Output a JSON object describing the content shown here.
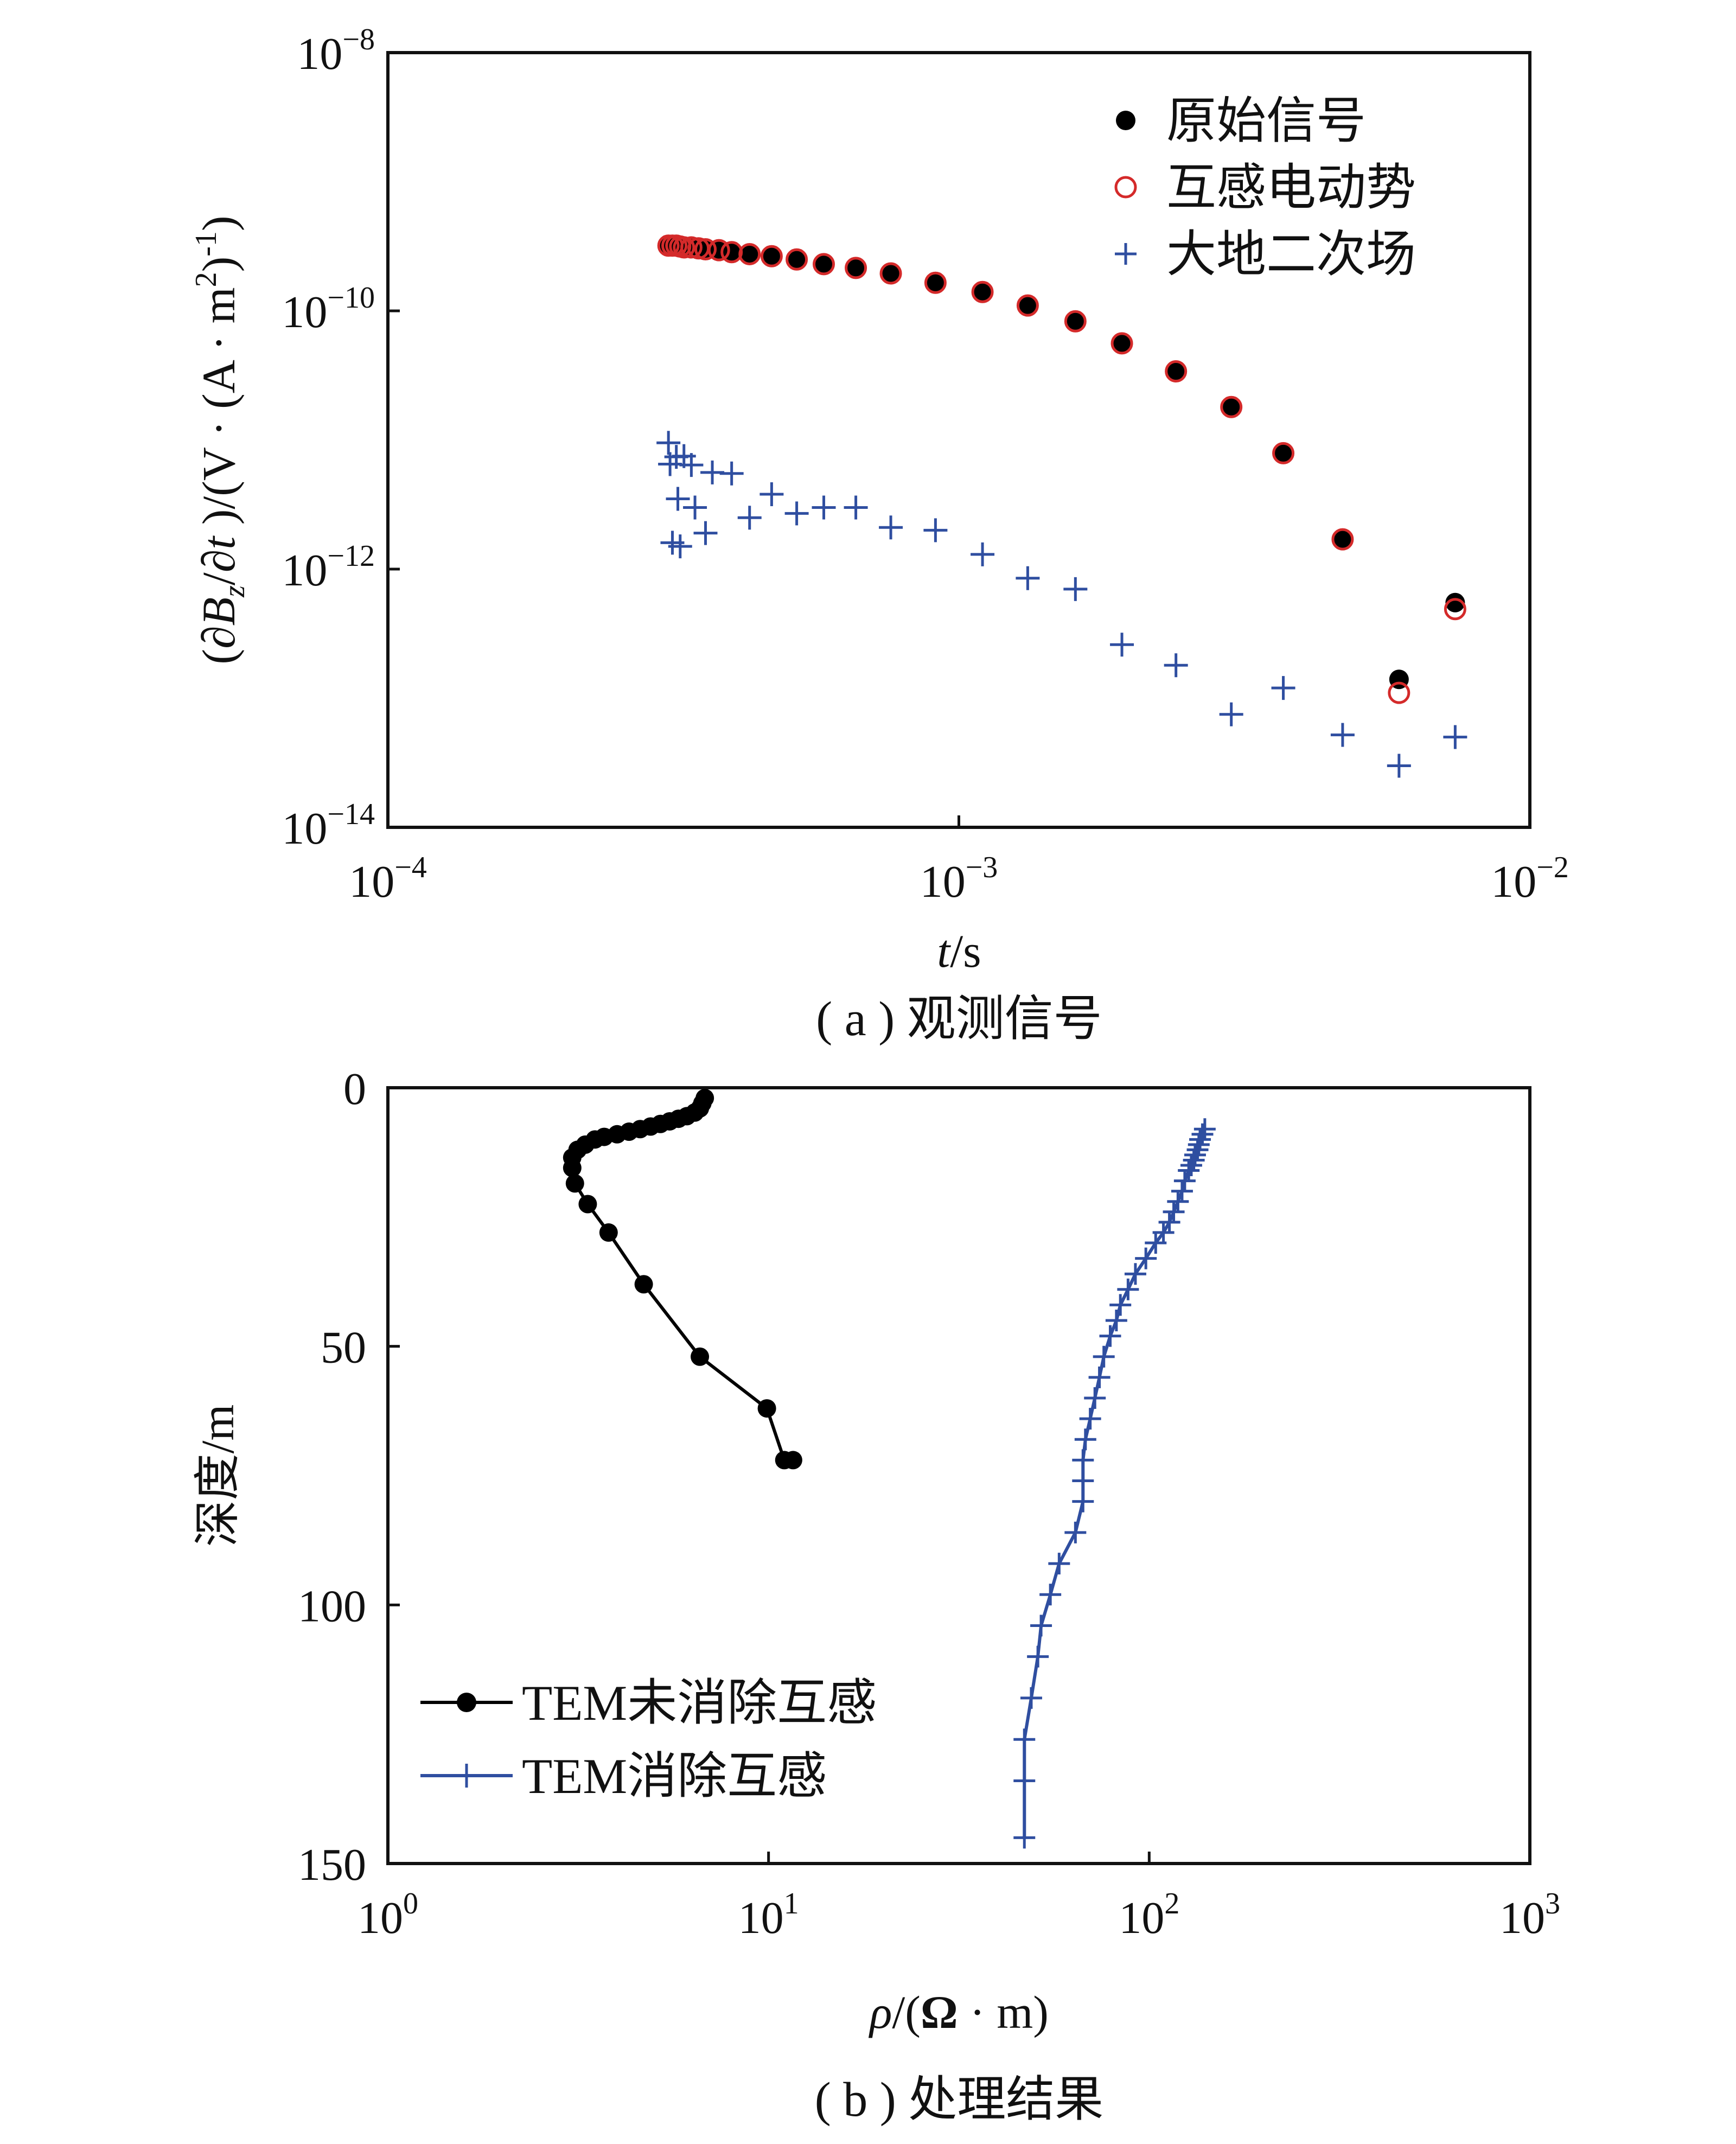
{
  "chart_data": [
    {
      "type": "scatter",
      "panel": "a",
      "caption": "( a ) 观测信号",
      "xlabel": "t/s",
      "ylabel": "(∂Bz/∂t )/(V · (A · m2)-1)",
      "xscale": "log",
      "yscale": "log",
      "xlim": [
        0.0001,
        0.01
      ],
      "ylim": [
        1e-14,
        1e-08
      ],
      "x_ticks": [
        {
          "value": 0.0001,
          "base": "10",
          "exp": "−4"
        },
        {
          "value": 0.001,
          "base": "10",
          "exp": "−3"
        },
        {
          "value": 0.01,
          "base": "10",
          "exp": "−2"
        }
      ],
      "y_ticks": [
        {
          "value": 1e-08,
          "base": "10",
          "exp": "−8"
        },
        {
          "value": 1e-10,
          "base": "10",
          "exp": "−10"
        },
        {
          "value": 1e-12,
          "base": "10",
          "exp": "−12"
        },
        {
          "value": 1e-14,
          "base": "10",
          "exp": "−14"
        }
      ],
      "legend_position": "top-right",
      "series": [
        {
          "name": "原始信号",
          "marker": "filled-circle",
          "color": "#000000",
          "x": [
            0.00031,
            0.000315,
            0.00032,
            0.000325,
            0.00033,
            0.00034,
            0.00035,
            0.00036,
            0.00038,
            0.0004,
            0.00043,
            0.00047,
            0.00052,
            0.00058,
            0.00066,
            0.00076,
            0.00091,
            0.0011,
            0.00132,
            0.0016,
            0.00193,
            0.0024,
            0.003,
            0.0037,
            0.0047,
            0.0059,
            0.0074
          ],
          "y": [
            3.2e-10,
            3.2e-10,
            3.2e-10,
            3.15e-10,
            3.1e-10,
            3.1e-10,
            3.05e-10,
            3e-10,
            2.95e-10,
            2.85e-10,
            2.75e-10,
            2.65e-10,
            2.5e-10,
            2.3e-10,
            2.15e-10,
            1.95e-10,
            1.65e-10,
            1.4e-10,
            1.1e-10,
            8.3e-11,
            5.6e-11,
            3.4e-11,
            1.8e-11,
            7.9e-12,
            1.7e-12,
            1.4e-13,
            5.5e-13
          ]
        },
        {
          "name": "互感电动势",
          "marker": "open-circle",
          "color": "#d42a2a",
          "x": [
            0.00031,
            0.000315,
            0.00032,
            0.000325,
            0.00033,
            0.00034,
            0.00035,
            0.00036,
            0.00038,
            0.0004,
            0.00043,
            0.00047,
            0.00052,
            0.00058,
            0.00066,
            0.00076,
            0.00091,
            0.0011,
            0.00132,
            0.0016,
            0.00193,
            0.0024,
            0.003,
            0.0037,
            0.0047,
            0.0059,
            0.0074
          ],
          "y": [
            3.2e-10,
            3.2e-10,
            3.2e-10,
            3.15e-10,
            3.1e-10,
            3.1e-10,
            3.05e-10,
            3e-10,
            2.95e-10,
            2.85e-10,
            2.75e-10,
            2.65e-10,
            2.5e-10,
            2.3e-10,
            2.15e-10,
            1.95e-10,
            1.65e-10,
            1.4e-10,
            1.1e-10,
            8.3e-11,
            5.6e-11,
            3.4e-11,
            1.8e-11,
            7.9e-12,
            1.7e-12,
            1.1e-13,
            4.9e-13
          ]
        },
        {
          "name": "大地二次场",
          "marker": "plus",
          "color": "#2f4ea0",
          "x": [
            0.00031,
            0.000312,
            0.000315,
            0.00032,
            0.000322,
            0.000325,
            0.00033,
            0.00034,
            0.000345,
            0.00036,
            0.00037,
            0.0004,
            0.00043,
            0.00047,
            0.00052,
            0.00058,
            0.00066,
            0.00076,
            0.00091,
            0.0011,
            0.00132,
            0.0016,
            0.00193,
            0.0024,
            0.003,
            0.0037,
            0.0047,
            0.0059,
            0.0074
          ],
          "y": [
            9.5e-12,
            6.5e-12,
            1.6e-12,
            7.4e-12,
            3.5e-12,
            1.5e-12,
            7.5e-12,
            6.4e-12,
            3e-12,
            1.9e-12,
            5.6e-12,
            5.5e-12,
            2.5e-12,
            3.8e-12,
            2.7e-12,
            3e-12,
            3e-12,
            2.1e-12,
            2e-12,
            1.3e-12,
            8.5e-13,
            7e-13,
            2.6e-13,
            1.8e-13,
            7.5e-14,
            1.2e-13,
            5.2e-14,
            3e-14,
            5e-14
          ]
        }
      ]
    },
    {
      "type": "line",
      "panel": "b",
      "caption": "( b ) 处理结果",
      "xlabel": "ρ/(Ω · m)",
      "ylabel": "深度/m",
      "xscale": "log",
      "xlim": [
        1,
        1000
      ],
      "ylim": [
        0,
        150
      ],
      "y_inverted": true,
      "x_ticks": [
        {
          "value": 1,
          "base": "10",
          "exp": "0"
        },
        {
          "value": 10,
          "base": "10",
          "exp": "1"
        },
        {
          "value": 100,
          "base": "10",
          "exp": "2"
        },
        {
          "value": 1000,
          "base": "10",
          "exp": "3"
        }
      ],
      "y_ticks": [
        0,
        50,
        100,
        150
      ],
      "legend_position": "bottom-left",
      "series": [
        {
          "name": "TEM未消除互感",
          "marker": "filled-circle",
          "color": "#000000",
          "x": [
            6.8,
            6.7,
            6.6,
            6.4,
            6.1,
            5.8,
            5.5,
            5.2,
            4.9,
            4.6,
            4.3,
            4.0,
            3.7,
            3.5,
            3.3,
            3.15,
            3.05,
            3.05,
            3.1,
            3.35,
            3.8,
            4.7,
            6.6,
            9.9,
            11.0,
            11.6
          ],
          "y": [
            2,
            3,
            4,
            4.8,
            5.5,
            6.0,
            6.5,
            7.0,
            7.5,
            8.0,
            8.5,
            9.0,
            9.5,
            10.0,
            11.0,
            12.0,
            13.5,
            15.5,
            18.5,
            22.5,
            28.0,
            38.0,
            52.0,
            62.0,
            72.0,
            72.0
          ],
          "y_note": "last two points plotted distinctly"
        },
        {
          "name": "TEM消除互感",
          "marker": "plus",
          "color": "#2f4ea0",
          "x": [
            140,
            138,
            136,
            135,
            134,
            132,
            131,
            129,
            127,
            124,
            122,
            119,
            116,
            113,
            109,
            104,
            98,
            92,
            88,
            84,
            82,
            79,
            76,
            74,
            72,
            70,
            68,
            67,
            67,
            67,
            64,
            58,
            55,
            52,
            51,
            49,
            47,
            47,
            47
          ],
          "y": [
            8,
            9,
            10,
            11,
            12,
            13,
            14,
            15,
            16,
            18,
            20,
            22,
            24,
            26,
            28,
            30,
            33,
            36,
            39,
            42,
            45,
            48,
            52,
            56,
            60,
            64,
            68,
            72,
            76,
            80,
            86,
            92,
            98,
            104,
            110,
            118,
            126,
            134,
            145
          ]
        }
      ]
    }
  ]
}
